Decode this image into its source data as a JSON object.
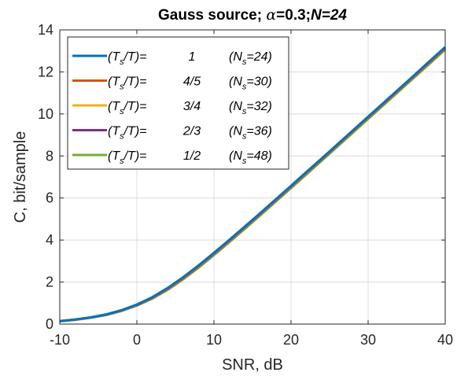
{
  "chart_data": {
    "type": "line",
    "title_parts": {
      "prefix": "Gauss source; ",
      "alpha_symbol": "α",
      "alpha_value": "=0.3;",
      "n_label": "N=24"
    },
    "xlabel": "SNR, dB",
    "ylabel": "C, bit/sample",
    "xlim": [
      -10,
      40
    ],
    "ylim": [
      0,
      14
    ],
    "xticks": [
      -10,
      0,
      10,
      20,
      30,
      40
    ],
    "yticks": [
      0,
      2,
      4,
      6,
      8,
      10,
      12,
      14
    ],
    "grid": true,
    "legend_position": "top-left",
    "x": [
      -10,
      -8,
      -6,
      -4,
      -2,
      0,
      2,
      4,
      6,
      8,
      10,
      12,
      14,
      16,
      18,
      20,
      22,
      24,
      26,
      28,
      30,
      32,
      34,
      36,
      38,
      40
    ],
    "series": [
      {
        "ratio": "1",
        "ns": "24",
        "color": "#0072BD",
        "values": [
          0.14,
          0.22,
          0.32,
          0.46,
          0.66,
          0.93,
          1.28,
          1.72,
          2.23,
          2.79,
          3.39,
          4.01,
          4.64,
          5.28,
          5.93,
          6.58,
          7.24,
          7.89,
          8.55,
          9.21,
          9.87,
          10.53,
          11.19,
          11.85,
          12.52,
          13.18
        ]
      },
      {
        "ratio": "4/5",
        "ns": "30",
        "color": "#D95319",
        "values": [
          0.14,
          0.21,
          0.31,
          0.45,
          0.65,
          0.91,
          1.25,
          1.68,
          2.19,
          2.75,
          3.35,
          3.97,
          4.6,
          5.24,
          5.89,
          6.54,
          7.2,
          7.85,
          8.51,
          9.17,
          9.83,
          10.49,
          11.15,
          11.81,
          12.47,
          13.13
        ]
      },
      {
        "ratio": "3/4",
        "ns": "32",
        "color": "#EDB120",
        "values": [
          0.14,
          0.21,
          0.31,
          0.45,
          0.64,
          0.91,
          1.25,
          1.67,
          2.18,
          2.74,
          3.34,
          3.96,
          4.59,
          5.23,
          5.88,
          6.53,
          7.19,
          7.84,
          8.5,
          9.16,
          9.82,
          10.48,
          11.14,
          11.8,
          12.46,
          13.12
        ]
      },
      {
        "ratio": "2/3",
        "ns": "36",
        "color": "#7E2F8E",
        "values": [
          0.14,
          0.21,
          0.31,
          0.44,
          0.64,
          0.9,
          1.24,
          1.66,
          2.17,
          2.73,
          3.33,
          3.95,
          4.58,
          5.22,
          5.87,
          6.52,
          7.18,
          7.83,
          8.49,
          9.15,
          9.81,
          10.47,
          11.13,
          11.79,
          12.45,
          13.11
        ]
      },
      {
        "ratio": "1/2",
        "ns": "48",
        "color": "#77AC30",
        "values": [
          0.13,
          0.2,
          0.3,
          0.43,
          0.62,
          0.88,
          1.21,
          1.63,
          2.13,
          2.68,
          3.28,
          3.9,
          4.53,
          5.17,
          5.82,
          6.47,
          7.12,
          7.78,
          8.44,
          9.1,
          9.76,
          10.42,
          11.08,
          11.74,
          12.4,
          13.06
        ]
      }
    ]
  }
}
